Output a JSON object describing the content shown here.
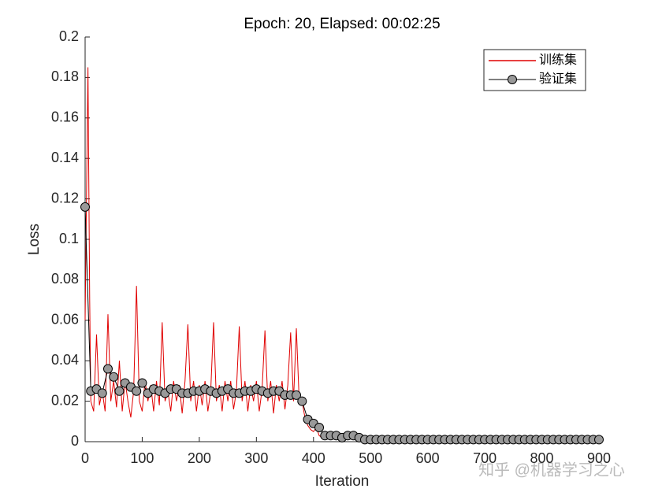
{
  "chart_data": {
    "type": "line",
    "title": "Epoch: 20, Elapsed: 00:02:25",
    "x_label": "Iteration",
    "y_label": "Loss",
    "xlim": [
      0,
      900
    ],
    "xticks": [
      0,
      100,
      200,
      300,
      400,
      500,
      600,
      700,
      800,
      900
    ],
    "ylim": [
      0,
      0.2
    ],
    "yticks": [
      0,
      0.02,
      0.04,
      0.06,
      0.08,
      0.1,
      0.12,
      0.14,
      0.16,
      0.18,
      0.2
    ],
    "legend": "top-right",
    "watermark": "知乎 @机器学习之心",
    "series": [
      {
        "name": "训练集",
        "color": "#e00000",
        "marker": false,
        "x": [
          0,
          5,
          8,
          10,
          15,
          20,
          25,
          30,
          35,
          40,
          45,
          50,
          55,
          60,
          65,
          70,
          75,
          80,
          85,
          90,
          95,
          100,
          105,
          110,
          115,
          120,
          125,
          130,
          135,
          140,
          145,
          150,
          155,
          160,
          165,
          170,
          175,
          180,
          185,
          190,
          195,
          200,
          205,
          210,
          215,
          220,
          225,
          230,
          235,
          240,
          245,
          250,
          255,
          260,
          265,
          270,
          275,
          280,
          285,
          290,
          295,
          300,
          305,
          310,
          315,
          320,
          325,
          330,
          335,
          340,
          345,
          350,
          355,
          360,
          365,
          370,
          375,
          380,
          385,
          390,
          395,
          400,
          405,
          410,
          415,
          420,
          430,
          440,
          450,
          500,
          550,
          600,
          650,
          700,
          750,
          800,
          850,
          900
        ],
        "values": [
          0.06,
          0.185,
          0.07,
          0.02,
          0.015,
          0.053,
          0.018,
          0.025,
          0.015,
          0.063,
          0.02,
          0.03,
          0.017,
          0.04,
          0.015,
          0.03,
          0.02,
          0.012,
          0.025,
          0.077,
          0.02,
          0.015,
          0.03,
          0.02,
          0.028,
          0.015,
          0.03,
          0.018,
          0.059,
          0.02,
          0.025,
          0.015,
          0.03,
          0.02,
          0.028,
          0.014,
          0.03,
          0.058,
          0.02,
          0.03,
          0.015,
          0.028,
          0.018,
          0.03,
          0.015,
          0.025,
          0.059,
          0.02,
          0.028,
          0.015,
          0.03,
          0.02,
          0.03,
          0.016,
          0.025,
          0.057,
          0.02,
          0.03,
          0.015,
          0.028,
          0.02,
          0.03,
          0.015,
          0.026,
          0.055,
          0.02,
          0.03,
          0.014,
          0.028,
          0.02,
          0.03,
          0.016,
          0.028,
          0.054,
          0.02,
          0.056,
          0.02,
          0.02,
          0.012,
          0.008,
          0.006,
          0.005,
          0.007,
          0.003,
          0.002,
          0.001,
          0.003,
          0.001,
          0.002,
          0.001,
          0.001,
          0.001,
          0.001,
          0.001,
          0.001,
          0.001,
          0.001,
          0.001
        ]
      },
      {
        "name": "验证集",
        "color": "#000000",
        "marker": true,
        "marker_color": "#999999",
        "x": [
          0,
          10,
          20,
          30,
          40,
          50,
          60,
          70,
          80,
          90,
          100,
          110,
          120,
          130,
          140,
          150,
          160,
          170,
          180,
          190,
          200,
          210,
          220,
          230,
          240,
          250,
          260,
          270,
          280,
          290,
          300,
          310,
          320,
          330,
          340,
          350,
          360,
          370,
          380,
          390,
          400,
          410,
          420,
          430,
          440,
          450,
          460,
          470,
          480,
          490,
          500,
          510,
          520,
          530,
          540,
          550,
          560,
          570,
          580,
          590,
          600,
          610,
          620,
          630,
          640,
          650,
          660,
          670,
          680,
          690,
          700,
          710,
          720,
          730,
          740,
          750,
          760,
          770,
          780,
          790,
          800,
          810,
          820,
          830,
          840,
          850,
          860,
          870,
          880,
          890,
          900
        ],
        "values": [
          0.116,
          0.025,
          0.026,
          0.024,
          0.036,
          0.032,
          0.025,
          0.029,
          0.027,
          0.025,
          0.029,
          0.024,
          0.026,
          0.025,
          0.024,
          0.026,
          0.026,
          0.024,
          0.024,
          0.025,
          0.025,
          0.026,
          0.025,
          0.024,
          0.025,
          0.026,
          0.024,
          0.024,
          0.025,
          0.025,
          0.026,
          0.025,
          0.024,
          0.025,
          0.025,
          0.023,
          0.023,
          0.023,
          0.02,
          0.011,
          0.009,
          0.007,
          0.003,
          0.003,
          0.003,
          0.002,
          0.003,
          0.003,
          0.002,
          0.001,
          0.001,
          0.001,
          0.001,
          0.001,
          0.001,
          0.001,
          0.001,
          0.001,
          0.001,
          0.001,
          0.001,
          0.001,
          0.001,
          0.001,
          0.001,
          0.001,
          0.001,
          0.001,
          0.001,
          0.001,
          0.001,
          0.001,
          0.001,
          0.001,
          0.001,
          0.001,
          0.001,
          0.001,
          0.001,
          0.001,
          0.001,
          0.001,
          0.001,
          0.001,
          0.001,
          0.001,
          0.001,
          0.001,
          0.001,
          0.001,
          0.001
        ]
      }
    ]
  }
}
